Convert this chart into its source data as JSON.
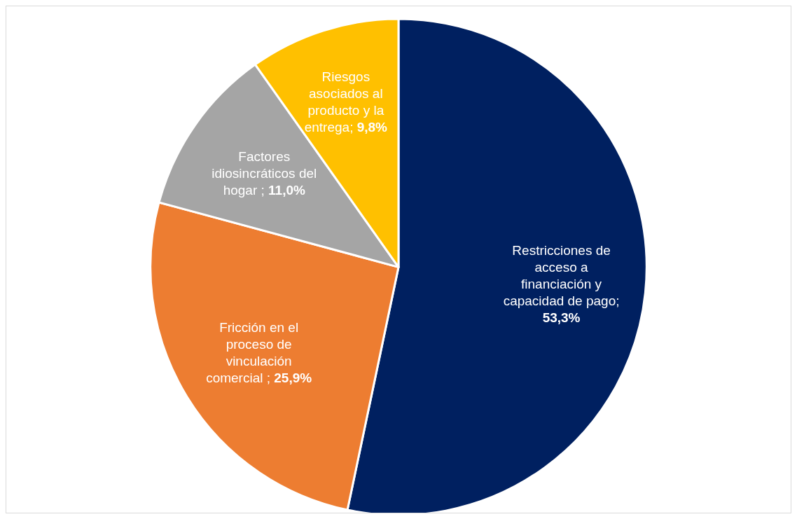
{
  "chart_data": {
    "type": "pie",
    "categories": [
      "Restricciones de acceso a financiación y capacidad de pago",
      "Fricción en el proceso de vinculación comercial",
      "Factores idiosincráticos del hogar",
      "Riesgos asociados al producto y la entrega"
    ],
    "values": [
      53.3,
      25.9,
      11.0,
      9.8
    ],
    "colors": [
      "#002060",
      "#ed7d31",
      "#a5a5a5",
      "#ffc000"
    ],
    "value_labels": [
      "; 53,3%",
      " ; 25,9%",
      " ; 11,0%",
      "; 9,8%"
    ],
    "legend": false
  }
}
